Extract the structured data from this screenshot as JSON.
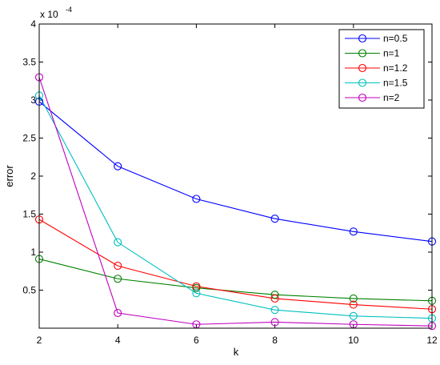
{
  "chart_data": {
    "type": "line",
    "title": "",
    "xlabel": "k",
    "ylabel": "error",
    "exponent_label": "x 10",
    "exponent_power": "-4",
    "x": [
      2,
      4,
      6,
      8,
      10,
      12
    ],
    "xlim": [
      2,
      12
    ],
    "ylim": [
      0,
      4
    ],
    "x_ticks": [
      "2",
      "4",
      "6",
      "8",
      "10",
      "12"
    ],
    "y_ticks": [
      "0.5",
      "1",
      "1.5",
      "2",
      "2.5",
      "3",
      "3.5",
      "4"
    ],
    "y_tick_values": [
      0.5,
      1,
      1.5,
      2,
      2.5,
      3,
      3.5,
      4
    ],
    "grid": false,
    "legend_position": "top-right",
    "marker": "circle",
    "series": [
      {
        "name": "n=0.5",
        "color": "#0000ff",
        "values": [
          2.98,
          2.13,
          1.7,
          1.44,
          1.27,
          1.14
        ]
      },
      {
        "name": "n=1",
        "color": "#008000",
        "values": [
          0.91,
          0.65,
          0.53,
          0.44,
          0.39,
          0.36
        ]
      },
      {
        "name": "n=1.2",
        "color": "#ff0000",
        "values": [
          1.43,
          0.82,
          0.55,
          0.39,
          0.31,
          0.25
        ]
      },
      {
        "name": "n=1.5",
        "color": "#00bfbf",
        "values": [
          3.06,
          1.13,
          0.46,
          0.24,
          0.16,
          0.13
        ]
      },
      {
        "name": "n=2",
        "color": "#bf00bf",
        "values": [
          3.3,
          0.2,
          0.05,
          0.08,
          0.05,
          0.03
        ]
      }
    ]
  }
}
